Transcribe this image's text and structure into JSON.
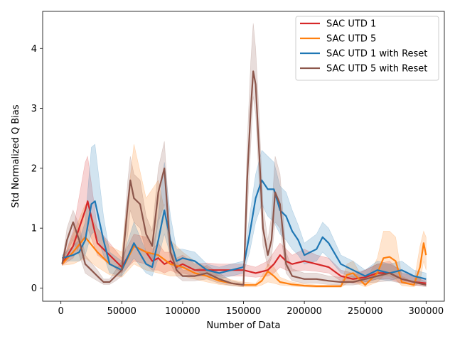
{
  "chart_data": {
    "type": "line",
    "xlabel": "Number of Data",
    "ylabel": "Std Normalized Q Bias",
    "xlim": [
      -15000,
      315000
    ],
    "ylim": [
      -0.22,
      4.62
    ],
    "xticks": [
      0,
      50000,
      100000,
      150000,
      200000,
      250000,
      300000
    ],
    "xtick_labels": [
      "0",
      "50000",
      "100000",
      "150000",
      "200000",
      "250000",
      "300000"
    ],
    "yticks": [
      0,
      1,
      2,
      3,
      4
    ],
    "ytick_labels": [
      "0",
      "1",
      "2",
      "3",
      "4"
    ],
    "legend_position": "top-right",
    "grid": false,
    "series": [
      {
        "name": "SAC UTD 1",
        "color": "#d62728",
        "x": [
          1000,
          10000,
          20000,
          22000,
          30000,
          40000,
          50000,
          60000,
          70000,
          75000,
          80000,
          85000,
          90000,
          95000,
          100000,
          110000,
          120000,
          130000,
          140000,
          150000,
          160000,
          170000,
          175000,
          180000,
          185000,
          190000,
          200000,
          210000,
          220000,
          230000,
          240000,
          250000,
          260000,
          270000,
          280000,
          290000,
          300000
        ],
        "y": [
          0.4,
          0.7,
          1.3,
          1.45,
          0.75,
          0.55,
          0.35,
          0.7,
          0.6,
          0.45,
          0.5,
          0.4,
          0.45,
          0.35,
          0.4,
          0.3,
          0.3,
          0.3,
          0.3,
          0.3,
          0.25,
          0.3,
          0.4,
          0.55,
          0.45,
          0.4,
          0.45,
          0.4,
          0.35,
          0.2,
          0.15,
          0.18,
          0.25,
          0.25,
          0.15,
          0.1,
          0.08
        ],
        "band_low": [
          0.38,
          0.5,
          0.9,
          1.0,
          0.55,
          0.4,
          0.25,
          0.45,
          0.4,
          0.3,
          0.3,
          0.25,
          0.3,
          0.25,
          0.25,
          0.2,
          0.2,
          0.2,
          0.2,
          0.2,
          0.18,
          0.2,
          0.25,
          0.35,
          0.3,
          0.28,
          0.3,
          0.28,
          0.25,
          0.12,
          0.08,
          0.1,
          0.15,
          0.15,
          0.08,
          0.05,
          0.04
        ],
        "band_high": [
          0.42,
          0.95,
          2.1,
          2.2,
          1.0,
          0.75,
          0.5,
          0.9,
          0.85,
          0.65,
          0.75,
          0.6,
          0.6,
          0.5,
          0.55,
          0.4,
          0.42,
          0.4,
          0.4,
          0.4,
          0.35,
          0.45,
          0.6,
          0.75,
          0.65,
          0.55,
          0.65,
          0.55,
          0.5,
          0.3,
          0.25,
          0.3,
          0.4,
          0.45,
          0.25,
          0.2,
          0.15
        ]
      },
      {
        "name": "SAC UTD 5",
        "color": "#ff7f0e",
        "x": [
          1000,
          10000,
          20000,
          30000,
          40000,
          50000,
          60000,
          70000,
          80000,
          90000,
          100000,
          110000,
          120000,
          130000,
          140000,
          150000,
          160000,
          165000,
          170000,
          175000,
          180000,
          190000,
          200000,
          210000,
          220000,
          230000,
          235000,
          240000,
          250000,
          260000,
          265000,
          270000,
          275000,
          280000,
          290000,
          295000,
          298000,
          300000
        ],
        "y": [
          0.4,
          0.6,
          0.85,
          0.6,
          0.4,
          0.3,
          0.7,
          0.6,
          0.55,
          0.4,
          0.35,
          0.25,
          0.2,
          0.12,
          0.08,
          0.05,
          0.05,
          0.12,
          0.28,
          0.2,
          0.1,
          0.06,
          0.04,
          0.03,
          0.03,
          0.03,
          0.22,
          0.25,
          0.05,
          0.25,
          0.5,
          0.52,
          0.45,
          0.1,
          0.05,
          0.35,
          0.75,
          0.55
        ],
        "band_low": [
          0.38,
          0.4,
          0.5,
          0.35,
          0.22,
          0.18,
          0.4,
          0.3,
          0.25,
          0.2,
          0.2,
          0.15,
          0.1,
          0.06,
          0.04,
          0.02,
          0.02,
          0.05,
          0.1,
          0.08,
          0.05,
          0.03,
          0.02,
          0.01,
          0.01,
          0.01,
          0.08,
          0.1,
          0.02,
          0.1,
          0.2,
          0.2,
          0.15,
          0.04,
          0.02,
          0.1,
          0.45,
          0.3
        ],
        "band_high": [
          0.42,
          0.9,
          1.4,
          1.0,
          0.7,
          0.6,
          2.4,
          1.5,
          1.8,
          0.8,
          0.6,
          0.45,
          0.35,
          0.2,
          0.14,
          0.1,
          0.08,
          0.2,
          0.4,
          0.35,
          0.18,
          0.1,
          0.07,
          0.05,
          0.05,
          0.05,
          0.4,
          0.45,
          0.1,
          0.5,
          0.95,
          0.95,
          0.85,
          0.2,
          0.1,
          0.7,
          0.95,
          0.85
        ]
      },
      {
        "name": "SAC UTD 1 with Reset",
        "color": "#1f77b4",
        "x": [
          1000,
          10000,
          15000,
          20000,
          25000,
          28000,
          35000,
          40000,
          50000,
          60000,
          70000,
          75000,
          80000,
          85000,
          90000,
          95000,
          100000,
          110000,
          120000,
          130000,
          140000,
          150000,
          155000,
          160000,
          165000,
          170000,
          175000,
          180000,
          185000,
          190000,
          195000,
          200000,
          210000,
          215000,
          220000,
          230000,
          240000,
          250000,
          260000,
          270000,
          280000,
          290000,
          300000
        ],
        "y": [
          0.5,
          0.55,
          0.6,
          0.8,
          1.4,
          1.45,
          0.8,
          0.4,
          0.3,
          0.75,
          0.4,
          0.35,
          0.8,
          1.3,
          0.8,
          0.45,
          0.5,
          0.45,
          0.3,
          0.25,
          0.3,
          0.35,
          0.9,
          1.5,
          1.8,
          1.65,
          1.65,
          1.3,
          1.2,
          0.95,
          0.8,
          0.55,
          0.65,
          0.85,
          0.75,
          0.4,
          0.3,
          0.2,
          0.3,
          0.25,
          0.3,
          0.2,
          0.15
        ],
        "band_low": [
          0.45,
          0.45,
          0.45,
          0.55,
          0.9,
          0.95,
          0.55,
          0.25,
          0.2,
          0.5,
          0.25,
          0.2,
          0.5,
          0.9,
          0.55,
          0.3,
          0.35,
          0.3,
          0.2,
          0.15,
          0.2,
          0.25,
          0.6,
          1.1,
          1.4,
          1.2,
          1.1,
          0.9,
          0.8,
          0.65,
          0.55,
          0.4,
          0.45,
          0.6,
          0.5,
          0.25,
          0.18,
          0.1,
          0.15,
          0.12,
          0.18,
          0.1,
          0.08
        ],
        "band_high": [
          0.55,
          0.7,
          0.8,
          1.1,
          2.35,
          2.4,
          1.2,
          0.6,
          0.45,
          1.1,
          0.6,
          0.55,
          1.2,
          2.1,
          1.2,
          0.65,
          0.65,
          0.6,
          0.4,
          0.35,
          0.4,
          0.45,
          1.2,
          1.9,
          2.3,
          2.2,
          2.1,
          1.7,
          1.6,
          1.3,
          1.05,
          0.75,
          0.9,
          1.1,
          1.0,
          0.55,
          0.45,
          0.3,
          0.45,
          0.4,
          0.45,
          0.3,
          0.25
        ]
      },
      {
        "name": "SAC UTD 5 with Reset",
        "color": "#8c564b",
        "x": [
          1000,
          5000,
          10000,
          15000,
          20000,
          25000,
          30000,
          35000,
          40000,
          45000,
          50000,
          55000,
          57000,
          60000,
          65000,
          70000,
          75000,
          80000,
          85000,
          90000,
          95000,
          100000,
          110000,
          120000,
          130000,
          140000,
          150000,
          153000,
          156000,
          158000,
          160000,
          163000,
          166000,
          170000,
          173000,
          176000,
          180000,
          185000,
          190000,
          200000,
          210000,
          220000,
          230000,
          240000,
          250000,
          260000,
          270000,
          280000,
          290000,
          300000
        ],
        "y": [
          0.4,
          0.8,
          1.1,
          0.8,
          0.4,
          0.3,
          0.2,
          0.1,
          0.1,
          0.2,
          0.3,
          1.4,
          1.8,
          1.5,
          1.4,
          0.9,
          0.7,
          1.6,
          2.0,
          0.6,
          0.3,
          0.2,
          0.2,
          0.25,
          0.15,
          0.08,
          0.05,
          1.8,
          3.0,
          3.62,
          3.4,
          2.2,
          1.0,
          0.55,
          0.8,
          1.6,
          1.4,
          0.4,
          0.2,
          0.15,
          0.15,
          0.12,
          0.1,
          0.1,
          0.15,
          0.2,
          0.25,
          0.15,
          0.1,
          0.05
        ],
        "band_low": [
          0.38,
          0.6,
          0.8,
          0.55,
          0.25,
          0.18,
          0.12,
          0.06,
          0.06,
          0.12,
          0.2,
          0.9,
          1.3,
          1.1,
          1.0,
          0.6,
          0.45,
          1.1,
          1.4,
          0.4,
          0.2,
          0.12,
          0.12,
          0.15,
          0.08,
          0.04,
          0.02,
          1.2,
          2.4,
          3.2,
          2.9,
          1.7,
          0.7,
          0.35,
          0.5,
          1.1,
          1.0,
          0.25,
          0.12,
          0.08,
          0.08,
          0.06,
          0.05,
          0.05,
          0.08,
          0.1,
          0.12,
          0.08,
          0.05,
          0.02
        ],
        "band_high": [
          0.42,
          1.0,
          1.3,
          1.05,
          0.55,
          0.42,
          0.3,
          0.15,
          0.15,
          0.3,
          0.45,
          1.8,
          2.2,
          1.9,
          1.8,
          1.2,
          0.95,
          2.0,
          2.45,
          0.85,
          0.45,
          0.3,
          0.3,
          0.38,
          0.25,
          0.12,
          0.08,
          2.4,
          3.8,
          4.42,
          4.0,
          2.8,
          1.4,
          0.8,
          1.2,
          2.2,
          1.9,
          0.6,
          0.32,
          0.25,
          0.25,
          0.2,
          0.18,
          0.2,
          0.3,
          0.4,
          0.4,
          0.3,
          0.2,
          0.1
        ]
      }
    ]
  }
}
